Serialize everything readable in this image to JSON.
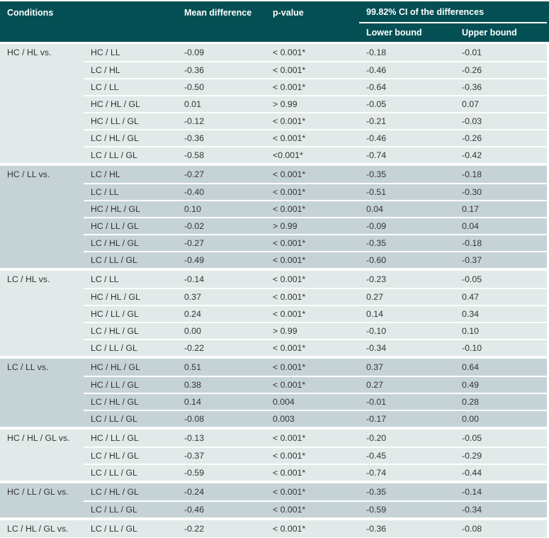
{
  "header": {
    "conditions": "Conditions",
    "mean_difference": "Mean difference",
    "p_value": "p-value",
    "ci_title": "99.82% CI of the differences",
    "lower_bound": "Lower bound",
    "upper_bound": "Upper bound"
  },
  "colors": {
    "header_bg": "#034f54",
    "header_text": "#ffffff",
    "group_light": "#e2e9e9",
    "group_dark": "#c6d3d6",
    "body_text": "#333333"
  },
  "groups": [
    {
      "label": "HC / HL vs.",
      "shade": "light",
      "rows": [
        {
          "condition": "HC / LL",
          "mean_difference": "-0.09",
          "p_value": "< 0.001*",
          "lower": "-0.18",
          "upper": "-0.01"
        },
        {
          "condition": "LC / HL",
          "mean_difference": "-0.36",
          "p_value": "< 0.001*",
          "lower": "-0.46",
          "upper": "-0.26"
        },
        {
          "condition": "LC / LL",
          "mean_difference": "-0.50",
          "p_value": "< 0.001*",
          "lower": "-0.64",
          "upper": "-0.36"
        },
        {
          "condition": "HC / HL / GL",
          "mean_difference": "0.01",
          "p_value": "> 0.99",
          "lower": "-0.05",
          "upper": "0.07"
        },
        {
          "condition": "HC / LL / GL",
          "mean_difference": "-0.12",
          "p_value": "< 0.001*",
          "lower": "-0.21",
          "upper": "-0.03"
        },
        {
          "condition": "LC / HL / GL",
          "mean_difference": "-0.36",
          "p_value": "< 0.001*",
          "lower": "-0.46",
          "upper": "-0.26"
        },
        {
          "condition": "LC / LL / GL",
          "mean_difference": "-0.58",
          "p_value": "<0.001*",
          "lower": "-0.74",
          "upper": "-0.42"
        }
      ]
    },
    {
      "label": "HC / LL vs.",
      "shade": "dark",
      "rows": [
        {
          "condition": "LC / HL",
          "mean_difference": "-0.27",
          "p_value": "< 0.001*",
          "lower": "-0.35",
          "upper": "-0.18"
        },
        {
          "condition": "LC / LL",
          "mean_difference": "-0.40",
          "p_value": "< 0.001*",
          "lower": "-0.51",
          "upper": "-0.30"
        },
        {
          "condition": "HC / HL / GL",
          "mean_difference": "0.10",
          "p_value": "< 0.001*",
          "lower": "0.04",
          "upper": "0.17"
        },
        {
          "condition": "HC / LL / GL",
          "mean_difference": "-0.02",
          "p_value": "> 0.99",
          "lower": "-0.09",
          "upper": "0.04"
        },
        {
          "condition": "LC / HL / GL",
          "mean_difference": "-0.27",
          "p_value": "< 0.001*",
          "lower": "-0.35",
          "upper": "-0.18"
        },
        {
          "condition": "LC / LL / GL",
          "mean_difference": "-0.49",
          "p_value": "< 0.001*",
          "lower": "-0.60",
          "upper": "-0.37"
        }
      ]
    },
    {
      "label": "LC / HL vs.",
      "shade": "light",
      "rows": [
        {
          "condition": "LC / LL",
          "mean_difference": "-0.14",
          "p_value": "< 0.001*",
          "lower": "-0.23",
          "upper": "-0.05"
        },
        {
          "condition": "HC / HL / GL",
          "mean_difference": "0.37",
          "p_value": "< 0.001*",
          "lower": "0.27",
          "upper": "0.47"
        },
        {
          "condition": "HC / LL / GL",
          "mean_difference": "0.24",
          "p_value": "< 0.001*",
          "lower": "0.14",
          "upper": "0.34"
        },
        {
          "condition": "LC / HL / GL",
          "mean_difference": "0.00",
          "p_value": "> 0.99",
          "lower": "-0.10",
          "upper": "0.10"
        },
        {
          "condition": "LC / LL / GL",
          "mean_difference": "-0.22",
          "p_value": "< 0.001*",
          "lower": "-0.34",
          "upper": "-0.10"
        }
      ]
    },
    {
      "label": "LC / LL vs.",
      "shade": "dark",
      "rows": [
        {
          "condition": "HC / HL / GL",
          "mean_difference": "0.51",
          "p_value": "< 0.001*",
          "lower": "0.37",
          "upper": "0.64"
        },
        {
          "condition": "HC / LL / GL",
          "mean_difference": "0.38",
          "p_value": "< 0.001*",
          "lower": "0.27",
          "upper": "0.49"
        },
        {
          "condition": "LC / HL / GL",
          "mean_difference": "0.14",
          "p_value": "0.004",
          "lower": "-0.01",
          "upper": "0.28"
        },
        {
          "condition": "LC / LL / GL",
          "mean_difference": "-0.08",
          "p_value": "0.003",
          "lower": "-0.17",
          "upper": "0.00"
        }
      ]
    },
    {
      "label": "HC / HL / GL vs.",
      "shade": "light",
      "rows": [
        {
          "condition": "HC / LL / GL",
          "mean_difference": "-0.13",
          "p_value": "< 0.001*",
          "lower": "-0.20",
          "upper": "-0.05"
        },
        {
          "condition": "LC / HL / GL",
          "mean_difference": "-0.37",
          "p_value": "< 0.001*",
          "lower": "-0.45",
          "upper": "-0.29"
        },
        {
          "condition": "LC / LL / GL",
          "mean_difference": "-0.59",
          "p_value": "< 0.001*",
          "lower": "-0.74",
          "upper": "-0.44"
        }
      ]
    },
    {
      "label": "HC / LL / GL vs.",
      "shade": "dark",
      "rows": [
        {
          "condition": "LC / HL / GL",
          "mean_difference": "-0.24",
          "p_value": "< 0.001*",
          "lower": "-0.35",
          "upper": "-0.14"
        },
        {
          "condition": "LC / LL / GL",
          "mean_difference": "-0.46",
          "p_value": "< 0.001*",
          "lower": "-0.59",
          "upper": "-0.34"
        }
      ]
    },
    {
      "label": "LC / HL / GL vs.",
      "shade": "light",
      "rows": [
        {
          "condition": "LC / LL / GL",
          "mean_difference": "-0.22",
          "p_value": "< 0.001*",
          "lower": "-0.36",
          "upper": "-0.08"
        }
      ]
    }
  ]
}
